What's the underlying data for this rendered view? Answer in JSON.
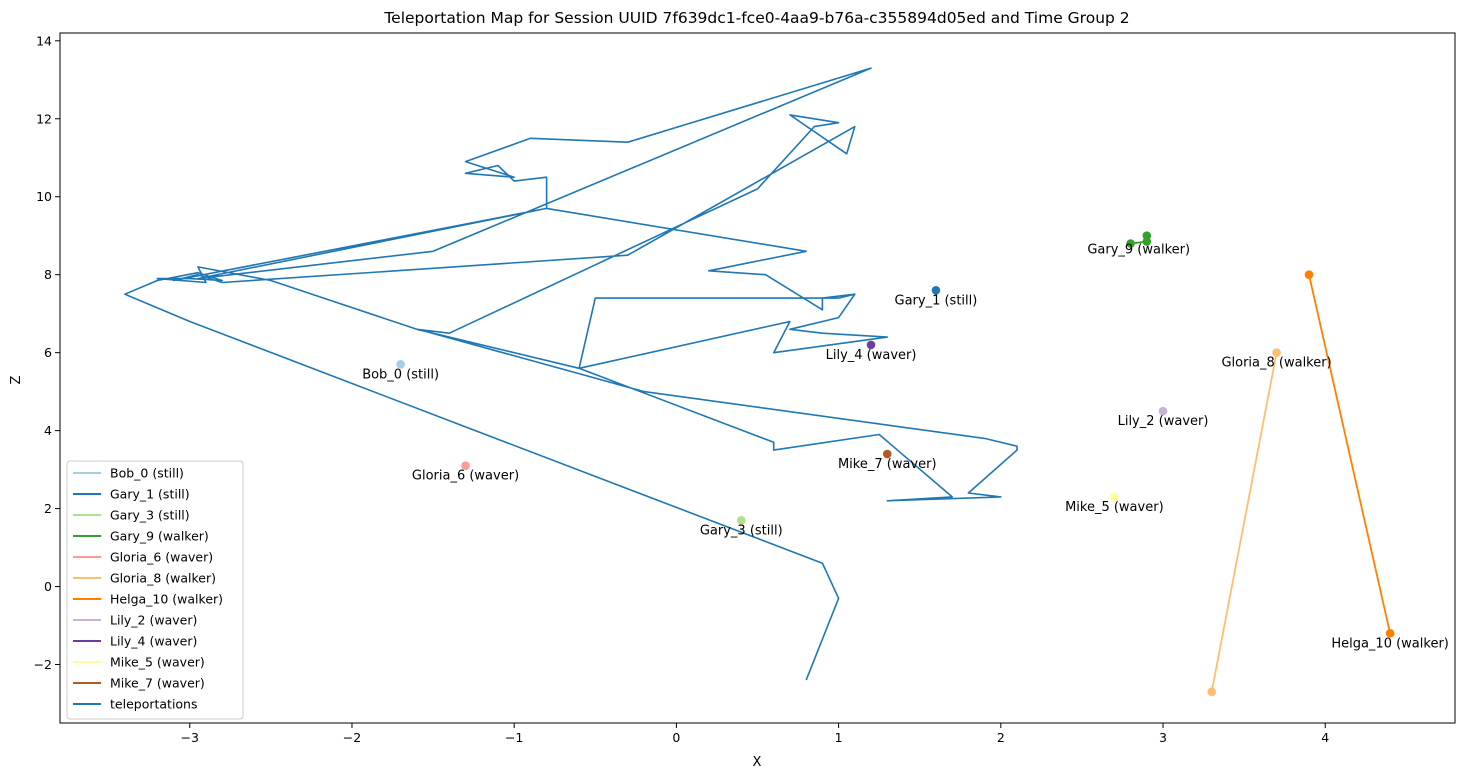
{
  "chart_data": {
    "type": "line",
    "title": "Teleportation Map for Session UUID 7f639dc1-fce0-4aa9-b76a-c355894d05ed and Time Group 2",
    "xlabel": "X",
    "ylabel": "Z",
    "xlim": [
      -3.8,
      4.8
    ],
    "ylim": [
      -3.5,
      14.2
    ],
    "xticks": [
      -3,
      -2,
      -1,
      0,
      1,
      2,
      3,
      4
    ],
    "yticks": [
      -2,
      0,
      2,
      4,
      6,
      8,
      10,
      12,
      14
    ],
    "grid": false,
    "legend_position": "lower-left",
    "series": [
      {
        "name": "Bob_0 (still)",
        "label": "Bob_0 (still)",
        "color": "#a6cee3",
        "points": [
          [
            -1.7,
            5.7
          ]
        ],
        "label_anchor": [
          -1.7,
          5.7
        ]
      },
      {
        "name": "Gary_1 (still)",
        "label": "Gary_1 (still)",
        "color": "#1f78b4",
        "points": [
          [
            1.6,
            7.6
          ]
        ],
        "label_anchor": [
          1.6,
          7.6
        ]
      },
      {
        "name": "Gary_3 (still)",
        "label": "Gary_3 (still)",
        "color": "#b2df8a",
        "points": [
          [
            0.4,
            1.7
          ]
        ],
        "label_anchor": [
          0.4,
          1.7
        ]
      },
      {
        "name": "Gary_9 (walker)",
        "label": "Gary_9 (walker)",
        "color": "#33a02c",
        "points": [
          [
            2.8,
            8.8
          ],
          [
            2.9,
            8.85
          ],
          [
            2.9,
            9.0
          ]
        ],
        "label_anchor": [
          2.85,
          8.9
        ]
      },
      {
        "name": "Gloria_6 (waver)",
        "label": "Gloria_6 (waver)",
        "color": "#fb9a99",
        "points": [
          [
            -1.3,
            3.1
          ]
        ],
        "label_anchor": [
          -1.3,
          3.1
        ]
      },
      {
        "name": "Gloria_8 (walker)",
        "label": "Gloria_8 (walker)",
        "color": "#fdbf6f",
        "points": [
          [
            3.3,
            -2.7
          ],
          [
            3.7,
            6.0
          ]
        ],
        "label_anchor": [
          3.7,
          6.0
        ]
      },
      {
        "name": "Helga_10 (walker)",
        "label": "Helga_10 (walker)",
        "color": "#ff7f00",
        "points": [
          [
            3.9,
            8.0
          ],
          [
            4.4,
            -1.2
          ]
        ],
        "label_anchor": [
          4.4,
          -1.2
        ]
      },
      {
        "name": "Lily_2 (waver)",
        "label": "Lily_2 (waver)",
        "color": "#cab2d6",
        "points": [
          [
            3.0,
            4.5
          ]
        ],
        "label_anchor": [
          3.0,
          4.5
        ]
      },
      {
        "name": "Lily_4 (waver)",
        "label": "Lily_4 (waver)",
        "color": "#6a3d9a",
        "points": [
          [
            1.2,
            6.2
          ]
        ],
        "label_anchor": [
          1.2,
          6.2
        ]
      },
      {
        "name": "Mike_5 (waver)",
        "label": "Mike_5 (waver)",
        "color": "#ffff99",
        "points": [
          [
            2.7,
            2.3
          ]
        ],
        "label_anchor": [
          2.7,
          2.3
        ]
      },
      {
        "name": "Mike_7 (waver)",
        "label": "Mike_7 (waver)",
        "color": "#b15928",
        "points": [
          [
            1.3,
            3.4
          ]
        ],
        "label_anchor": [
          1.3,
          3.4
        ]
      }
    ],
    "teleportations": {
      "name": "teleportations",
      "color": "#1f77b4",
      "points": [
        [
          0.8,
          -2.4
        ],
        [
          1.0,
          -0.3
        ],
        [
          0.9,
          0.6
        ],
        [
          -3.0,
          6.8
        ],
        [
          -3.4,
          7.5
        ],
        [
          -3.2,
          7.85
        ],
        [
          -2.95,
          8.05
        ],
        [
          -2.8,
          7.85
        ],
        [
          -3.0,
          7.9
        ],
        [
          -3.2,
          7.9
        ],
        [
          -2.9,
          7.8
        ],
        [
          -2.95,
          8.2
        ],
        [
          -2.5,
          7.85
        ],
        [
          -1.6,
          6.6
        ],
        [
          -1.55,
          6.55
        ],
        [
          -0.2,
          5.0
        ],
        [
          1.9,
          3.8
        ],
        [
          2.1,
          3.6
        ],
        [
          2.1,
          3.5
        ],
        [
          1.8,
          2.4
        ],
        [
          2.0,
          2.3
        ],
        [
          1.3,
          2.2
        ],
        [
          1.7,
          2.3
        ],
        [
          1.25,
          3.9
        ],
        [
          0.6,
          3.5
        ],
        [
          0.6,
          3.7
        ],
        [
          -0.6,
          5.6
        ],
        [
          -1.6,
          6.6
        ],
        [
          -1.4,
          6.5
        ],
        [
          0.5,
          10.2
        ],
        [
          0.85,
          11.8
        ],
        [
          1.0,
          11.9
        ],
        [
          0.7,
          12.1
        ],
        [
          1.05,
          11.1
        ],
        [
          1.1,
          11.8
        ],
        [
          -0.3,
          8.5
        ],
        [
          -2.8,
          7.8
        ],
        [
          -2.95,
          8.0
        ],
        [
          -3.1,
          7.85
        ],
        [
          -0.8,
          9.7
        ],
        [
          -0.8,
          9.9
        ],
        [
          -0.8,
          10.5
        ],
        [
          -1.0,
          10.4
        ],
        [
          -1.1,
          10.8
        ],
        [
          -1.3,
          10.6
        ],
        [
          -1.0,
          10.5
        ],
        [
          -1.3,
          10.9
        ],
        [
          -0.9,
          11.5
        ],
        [
          -0.3,
          11.4
        ],
        [
          1.2,
          13.3
        ],
        [
          -1.5,
          8.6
        ],
        [
          -2.95,
          7.9
        ],
        [
          -0.8,
          9.7
        ],
        [
          0.8,
          8.6
        ],
        [
          0.2,
          8.1
        ],
        [
          0.55,
          8.0
        ],
        [
          0.9,
          7.1
        ],
        [
          0.9,
          7.4
        ],
        [
          1.1,
          7.5
        ],
        [
          1.0,
          7.4
        ],
        [
          -0.5,
          7.4
        ],
        [
          -0.6,
          5.6
        ],
        [
          0.7,
          6.8
        ],
        [
          0.6,
          6.0
        ],
        [
          1.3,
          6.4
        ],
        [
          0.9,
          6.5
        ],
        [
          0.7,
          6.6
        ],
        [
          1.0,
          6.9
        ],
        [
          1.1,
          7.5
        ]
      ]
    }
  }
}
